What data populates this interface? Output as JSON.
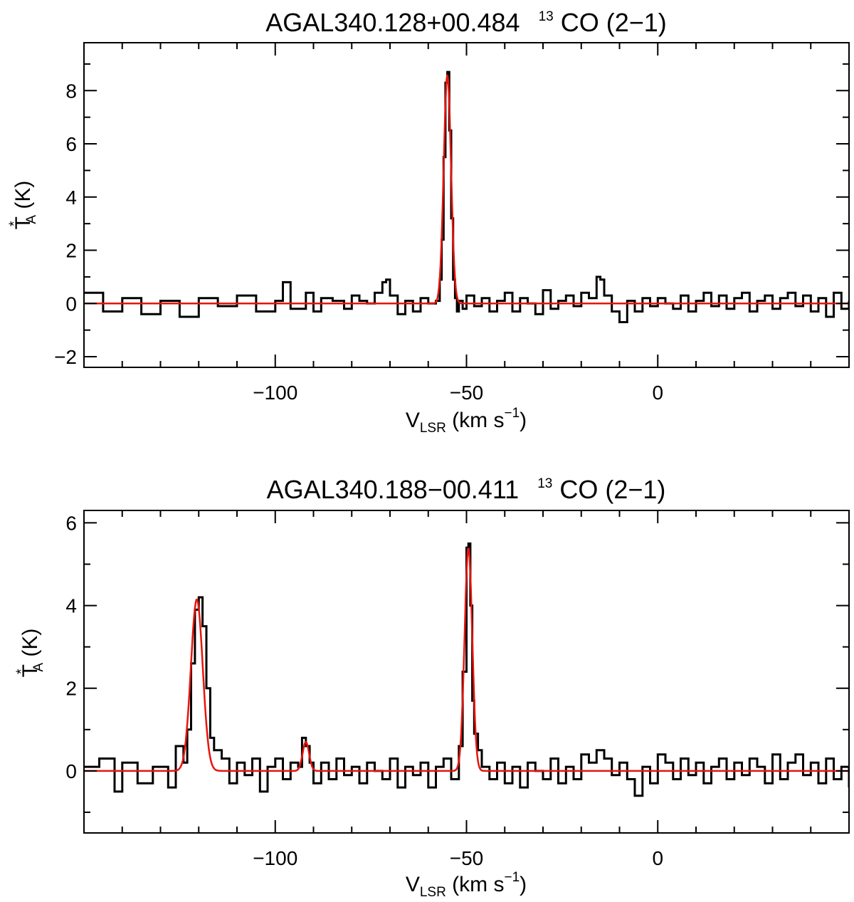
{
  "colors": {
    "data": "#000000",
    "fit": "#e8140c",
    "axes": "#000000"
  },
  "chart_data": [
    {
      "type": "line",
      "title": {
        "main": "AGAL340.128+00.484",
        "iso": "13",
        "species": "CO (2−1)"
      },
      "xlabel": {
        "main": "V",
        "sub": "LSR",
        "rest": " (km s",
        "sup": "−1",
        "close": ")"
      },
      "ylabel": {
        "main": "T",
        "sup": "*",
        "sub": "A",
        "rest": " (K)"
      },
      "xlim": [
        -150,
        50
      ],
      "ylim": [
        -2.4,
        9.8
      ],
      "xticks": [
        -100,
        -50,
        0
      ],
      "xtick_labels": [
        "−100",
        "−50",
        "0"
      ],
      "yticks": [
        -2,
        0,
        2,
        4,
        6,
        8
      ],
      "ytick_labels": [
        "−2",
        "0",
        "2",
        "4",
        "6",
        "8"
      ],
      "grid": false,
      "legend": "none",
      "series": [
        {
          "role": "observed-spectrum",
          "style": "step",
          "x": [
            -150,
            -145,
            -140,
            -135,
            -130,
            -125,
            -120,
            -115,
            -110,
            -105,
            -100,
            -98,
            -96,
            -92,
            -90,
            -88,
            -85,
            -82,
            -80,
            -78,
            -76,
            -74,
            -72,
            -71,
            -70,
            -68,
            -66,
            -64,
            -62,
            -60,
            -58,
            -57,
            -56.5,
            -56,
            -55.5,
            -55,
            -54.5,
            -54,
            -53.5,
            -53,
            -52.5,
            -52,
            -51,
            -50,
            -48,
            -46,
            -44,
            -42,
            -40,
            -38,
            -36,
            -34,
            -32,
            -30,
            -28,
            -26,
            -24,
            -22,
            -20,
            -18,
            -16,
            -15,
            -14,
            -12,
            -10,
            -8,
            -6,
            -4,
            -2,
            0,
            2,
            4,
            6,
            8,
            10,
            12,
            14,
            16,
            18,
            20,
            22,
            24,
            26,
            28,
            30,
            32,
            34,
            36,
            38,
            40,
            42,
            44,
            46,
            48,
            50
          ],
          "y": [
            0.4,
            -0.3,
            0.2,
            -0.4,
            0.1,
            -0.5,
            0.2,
            -0.1,
            0.3,
            -0.3,
            0.1,
            0.8,
            -0.2,
            0.4,
            -0.3,
            0.2,
            0.1,
            -0.2,
            0.3,
            0.1,
            0.0,
            0.4,
            0.8,
            0.9,
            0.3,
            -0.4,
            0.1,
            -0.3,
            0.2,
            0.0,
            0.1,
            0.9,
            2.4,
            5.5,
            8.3,
            8.7,
            6.5,
            3.2,
            0.9,
            0.2,
            -0.3,
            0.1,
            -0.2,
            0.3,
            -0.1,
            0.2,
            -0.3,
            0.1,
            0.4,
            -0.3,
            0.2,
            0.0,
            -0.4,
            0.5,
            -0.2,
            0.1,
            0.3,
            -0.1,
            0.4,
            0.2,
            1.0,
            0.9,
            0.3,
            -0.3,
            -0.7,
            0.1,
            -0.3,
            0.2,
            -0.1,
            0.2,
            0.0,
            -0.2,
            0.3,
            -0.3,
            0.1,
            0.4,
            -0.1,
            0.3,
            -0.2,
            0.2,
            0.4,
            -0.3,
            0.1,
            0.3,
            -0.2,
            0.2,
            0.4,
            -0.1,
            0.3,
            -0.3,
            0.2,
            -0.5,
            0.4,
            -0.2,
            0.1
          ]
        },
        {
          "role": "gaussian-fit",
          "style": "gaussian",
          "baseline": 0.0,
          "components": [
            {
              "amplitude": 8.6,
              "center": -55.0,
              "sigma": 0.95
            }
          ]
        }
      ]
    },
    {
      "type": "line",
      "title": {
        "main": "AGAL340.188−00.411",
        "iso": "13",
        "species": "CO (2−1)"
      },
      "xlabel": {
        "main": "V",
        "sub": "LSR",
        "rest": " (km s",
        "sup": "−1",
        "close": ")"
      },
      "ylabel": {
        "main": "T",
        "sup": "*",
        "sub": "A",
        "rest": " (K)"
      },
      "xlim": [
        -150,
        50
      ],
      "ylim": [
        -1.5,
        6.3
      ],
      "xticks": [
        -100,
        -50,
        0
      ],
      "xtick_labels": [
        "−100",
        "−50",
        "0"
      ],
      "yticks": [
        0,
        2,
        4,
        6
      ],
      "ytick_labels": [
        "0",
        "2",
        "4",
        "6"
      ],
      "grid": false,
      "legend": "none",
      "series": [
        {
          "role": "observed-spectrum",
          "style": "step",
          "x": [
            -150,
            -146,
            -142,
            -140,
            -136,
            -132,
            -128,
            -126,
            -124,
            -123,
            -122,
            -121,
            -120,
            -119,
            -118,
            -117,
            -116,
            -114,
            -112,
            -110,
            -108,
            -106,
            -104,
            -102,
            -100,
            -98,
            -96,
            -94,
            -93,
            -92,
            -91,
            -90,
            -88,
            -86,
            -84,
            -82,
            -80,
            -78,
            -76,
            -74,
            -72,
            -70,
            -68,
            -66,
            -64,
            -62,
            -60,
            -58,
            -56,
            -54,
            -52,
            -51,
            -50,
            -49.5,
            -49,
            -48.5,
            -48,
            -47,
            -46,
            -44,
            -42,
            -40,
            -38,
            -36,
            -34,
            -32,
            -30,
            -28,
            -26,
            -24,
            -22,
            -20,
            -18,
            -16,
            -14,
            -12,
            -10,
            -8,
            -6,
            -4,
            -2,
            0,
            2,
            4,
            6,
            8,
            10,
            12,
            14,
            16,
            18,
            20,
            22,
            24,
            26,
            28,
            30,
            32,
            34,
            36,
            38,
            40,
            42,
            44,
            46,
            48,
            50
          ],
          "y": [
            0.1,
            0.3,
            -0.5,
            0.2,
            -0.3,
            0.1,
            -0.4,
            0.6,
            0.2,
            1.0,
            2.6,
            3.9,
            4.2,
            3.5,
            2.0,
            0.8,
            0.5,
            0.3,
            -0.3,
            0.2,
            -0.1,
            0.3,
            -0.5,
            0.1,
            0.3,
            -0.2,
            0.2,
            0.1,
            0.8,
            0.6,
            0.2,
            -0.3,
            0.2,
            -0.2,
            0.3,
            -0.1,
            0.1,
            -0.3,
            0.2,
            0.0,
            -0.2,
            0.3,
            -0.4,
            0.1,
            -0.1,
            0.2,
            -0.4,
            0.1,
            0.3,
            -0.2,
            0.6,
            2.4,
            5.4,
            5.5,
            4.0,
            1.7,
            0.9,
            0.5,
            0.1,
            -0.2,
            0.2,
            -0.3,
            0.1,
            -0.4,
            0.2,
            0.0,
            -0.2,
            0.3,
            -0.3,
            0.1,
            -0.2,
            0.4,
            0.2,
            0.5,
            0.3,
            -0.1,
            0.2,
            -0.2,
            -0.6,
            0.1,
            -0.3,
            0.4,
            0.2,
            -0.2,
            0.3,
            -0.1,
            0.2,
            -0.3,
            0.1,
            0.3,
            -0.2,
            0.2,
            -0.1,
            0.3,
            0.1,
            -0.3,
            0.4,
            -0.2,
            0.2,
            0.4,
            -0.1,
            0.2,
            -0.3,
            0.3,
            -0.2,
            0.1,
            -0.4
          ]
        },
        {
          "role": "gaussian-fit",
          "style": "gaussian",
          "baseline": 0.0,
          "components": [
            {
              "amplitude": 4.15,
              "center": -120.5,
              "sigma": 1.55
            },
            {
              "amplitude": 0.7,
              "center": -92.0,
              "sigma": 0.85
            },
            {
              "amplitude": 5.4,
              "center": -49.5,
              "sigma": 1.0
            }
          ]
        }
      ]
    }
  ]
}
